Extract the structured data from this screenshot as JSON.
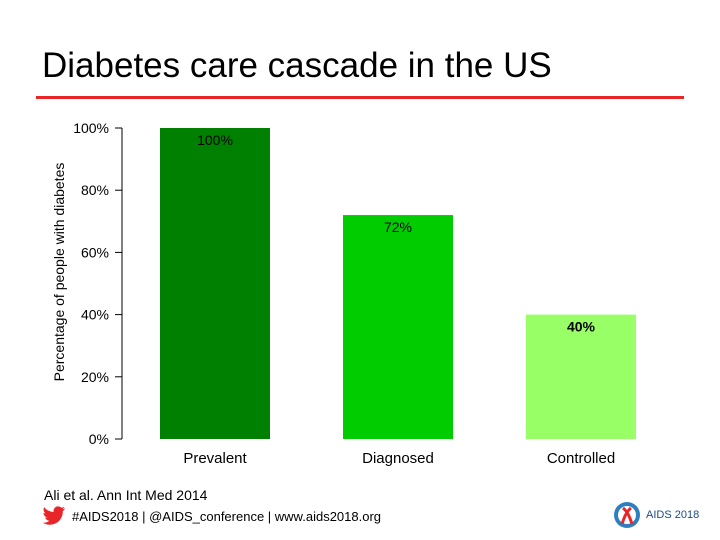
{
  "slide": {
    "title": "Diabetes care cascade in the US",
    "citation": "Ali et al. Ann Int Med 2014",
    "footer": "#AIDS2018 | @AIDS_conference | www.aids2018.org",
    "logo_text": "AIDS 2018",
    "accent_color": "#e8262a"
  },
  "chart_data": {
    "type": "bar",
    "ylabel": "Percentage of people with diabetes",
    "ylim": [
      0,
      100
    ],
    "yticks": [
      0,
      20,
      40,
      60,
      80,
      100
    ],
    "ytick_labels": [
      "0%",
      "20%",
      "40%",
      "60%",
      "80%",
      "100%"
    ],
    "categories": [
      "Prevalent",
      "Diagnosed",
      "Controlled"
    ],
    "values": [
      100,
      72,
      40
    ],
    "data_labels": [
      "100%",
      "72%",
      "40%"
    ],
    "colors": [
      "#008000",
      "#00cc00",
      "#99ff66"
    ],
    "grid": false
  }
}
